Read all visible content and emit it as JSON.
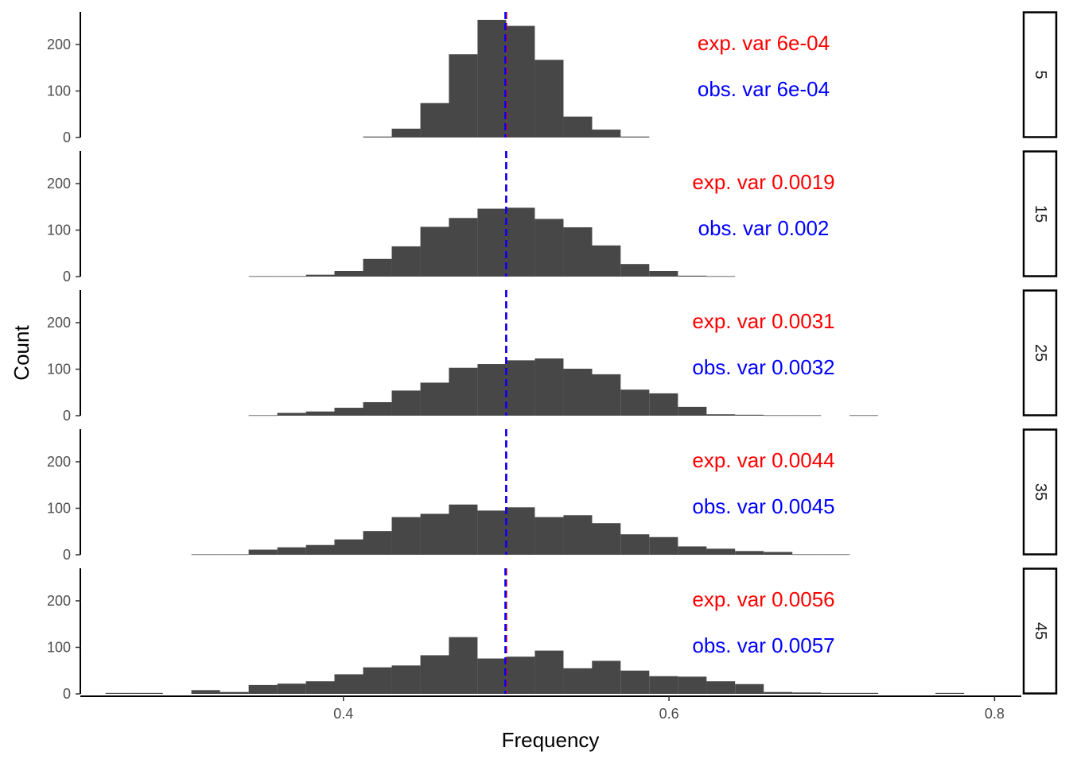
{
  "chart_data": {
    "type": "bar",
    "xlabel": "Frequency",
    "ylabel": "Count",
    "xlim": [
      0.2384,
      0.8164
    ],
    "ylim": [
      0,
      270
    ],
    "x_ticks": [
      0.4,
      0.6,
      0.8
    ],
    "x_tick_labels": [
      "0.4",
      "0.6",
      "0.8"
    ],
    "y_ticks": [
      0,
      100,
      200
    ],
    "y_tick_labels": [
      "0",
      "100",
      "200"
    ],
    "bar_color": "#474747",
    "expected_line_color": "#ff0000",
    "observed_line_color": "#0000ff",
    "expected_color": "#ff0000",
    "observed_color": "#0000ff",
    "facet_strip_position": "right",
    "grid": false,
    "facets": [
      {
        "label": "5",
        "exp_text": "exp. var 6e-04",
        "obs_text": "obs. var 6e-04",
        "exp_mean": 0.5,
        "obs_mean": 0.4995,
        "bin_starts": [
          0.4121,
          0.4297,
          0.4473,
          0.4648,
          0.4824,
          0.5,
          0.5176,
          0.5352,
          0.5527,
          0.5703
        ],
        "bin_width": 0.0176,
        "counts": [
          2,
          19,
          74,
          179,
          253,
          240,
          167,
          45,
          17,
          2
        ]
      },
      {
        "label": "15",
        "exp_text": "exp. var 0.0019",
        "obs_text": "obs. var 0.002",
        "exp_mean": 0.5,
        "obs_mean": 0.5,
        "bin_starts": [
          0.3418,
          0.3594,
          0.377,
          0.3945,
          0.4121,
          0.4297,
          0.4473,
          0.4648,
          0.4824,
          0.5,
          0.5176,
          0.5352,
          0.5527,
          0.5703,
          0.5879,
          0.6055,
          0.623
        ],
        "bin_width": 0.0176,
        "counts": [
          1,
          1,
          4,
          12,
          38,
          65,
          107,
          126,
          146,
          148,
          124,
          106,
          67,
          27,
          12,
          2,
          1
        ]
      },
      {
        "label": "25",
        "exp_text": "exp. var 0.0031",
        "obs_text": "obs. var 0.0032",
        "exp_mean": 0.5,
        "obs_mean": 0.5,
        "bin_starts": [
          0.3418,
          0.3594,
          0.377,
          0.3945,
          0.4121,
          0.4297,
          0.4473,
          0.4648,
          0.4824,
          0.5,
          0.5176,
          0.5352,
          0.5527,
          0.5703,
          0.5879,
          0.6055,
          0.623,
          0.6406,
          0.6582,
          0.6758,
          0.6934,
          0.7109
        ],
        "bin_width": 0.0176,
        "counts": [
          1,
          6,
          9,
          17,
          29,
          54,
          71,
          103,
          111,
          119,
          123,
          101,
          89,
          56,
          48,
          19,
          3,
          2,
          1,
          1,
          0,
          1
        ]
      },
      {
        "label": "35",
        "exp_text": "exp. var 0.0044",
        "obs_text": "obs. var 0.0045",
        "exp_mean": 0.5,
        "obs_mean": 0.5,
        "bin_starts": [
          0.3066,
          0.3242,
          0.3418,
          0.3594,
          0.377,
          0.3945,
          0.4121,
          0.4297,
          0.4473,
          0.4648,
          0.4824,
          0.5,
          0.5176,
          0.5352,
          0.5527,
          0.5703,
          0.5879,
          0.6055,
          0.623,
          0.6406,
          0.6582,
          0.6758,
          0.6934
        ],
        "bin_width": 0.0176,
        "counts": [
          1,
          1,
          11,
          16,
          21,
          33,
          51,
          81,
          88,
          108,
          95,
          102,
          81,
          85,
          68,
          44,
          38,
          18,
          13,
          8,
          6,
          1,
          1
        ]
      },
      {
        "label": "45",
        "exp_text": "exp. var 0.0056",
        "obs_text": "obs. var 0.0057",
        "exp_mean": 0.5,
        "obs_mean": 0.4995,
        "bin_starts": [
          0.2539,
          0.2715,
          0.2891,
          0.3066,
          0.3242,
          0.3418,
          0.3594,
          0.377,
          0.3945,
          0.4121,
          0.4297,
          0.4473,
          0.4648,
          0.4824,
          0.5,
          0.5176,
          0.5352,
          0.5527,
          0.5703,
          0.5879,
          0.6055,
          0.623,
          0.6406,
          0.6582,
          0.6758,
          0.6934,
          0.7109,
          0.7285,
          0.7461,
          0.7637
        ],
        "bin_width": 0.0176,
        "counts": [
          2,
          2,
          0,
          8,
          4,
          19,
          22,
          27,
          42,
          57,
          61,
          83,
          122,
          76,
          80,
          93,
          55,
          71,
          50,
          38,
          37,
          27,
          21,
          4,
          3,
          2,
          2,
          0,
          0,
          2
        ]
      }
    ]
  }
}
